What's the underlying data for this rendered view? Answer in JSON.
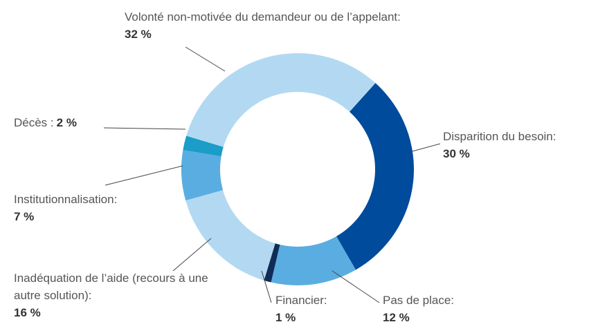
{
  "chart_data": {
    "type": "pie",
    "donut": true,
    "categories": [
      "Disparition du besoin:",
      "Pas de place:",
      "Financier:",
      "Inadéquation de l’aide (recours à une autre solution):",
      "Institutionnalisation:",
      "Décès :",
      "Volonté non-motivée du demandeur ou de l’appelant:"
    ],
    "values": [
      30,
      12,
      1,
      16,
      7,
      2,
      32
    ],
    "value_labels": [
      "30 %",
      "12 %",
      "1 %",
      "16 %",
      "7 %",
      "2 %",
      "32 %"
    ],
    "colors": [
      "#004b9b",
      "#5aade0",
      "#0f2c57",
      "#b3d9f2",
      "#5aade0",
      "#1a9dc8",
      "#b3d9f2"
    ]
  }
}
